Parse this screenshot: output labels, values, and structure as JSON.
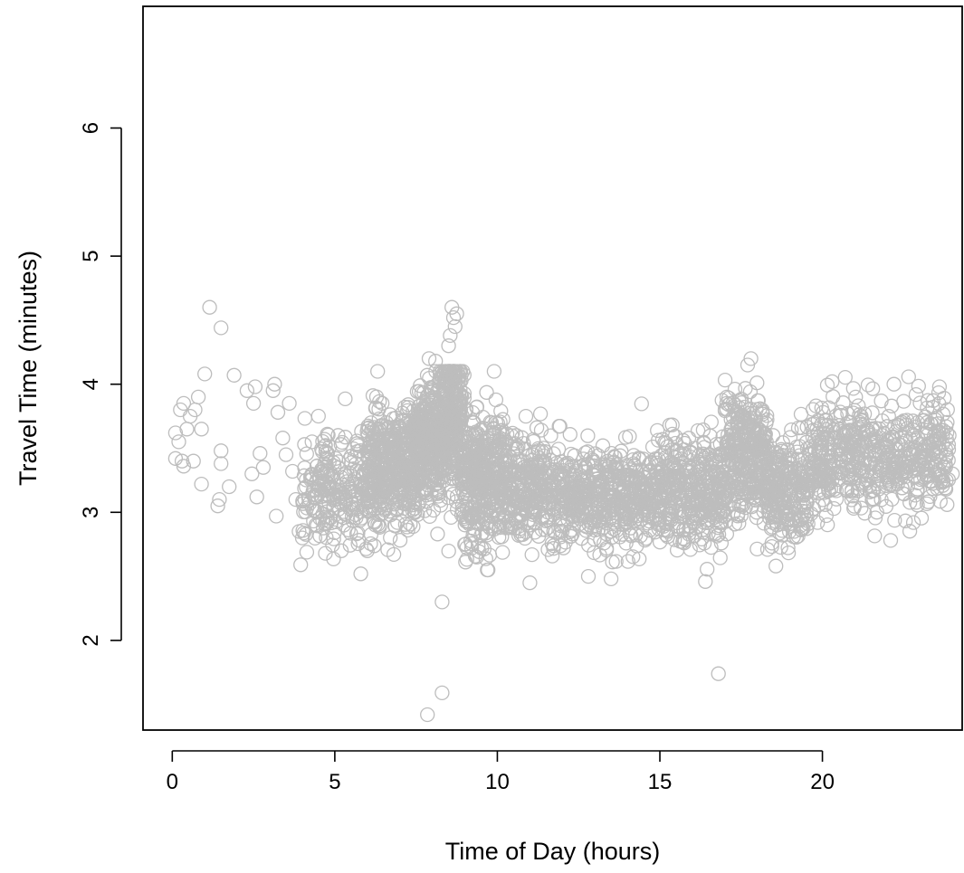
{
  "chart_data": {
    "type": "scatter",
    "title": "",
    "xlabel": "Time of Day (hours)",
    "ylabel": "Travel Time (minutes)",
    "xlim": [
      -0.9,
      24.3
    ],
    "ylim": [
      1.3,
      6.95
    ],
    "xticks": [
      0,
      5,
      10,
      15,
      20
    ],
    "xtick_labels": [
      "0",
      "5",
      "10",
      "15",
      "20"
    ],
    "yticks": [
      2,
      3,
      4,
      5,
      6
    ],
    "ytick_labels": [
      "2",
      "3",
      "4",
      "5",
      "6"
    ],
    "grid": false,
    "legend": "none",
    "marker": "open-circle",
    "point_color": "#bdbdbd",
    "series": [
      {
        "points_explicit": [
          [
            0.1,
            3.42
          ],
          [
            0.1,
            3.62
          ],
          [
            0.2,
            3.55
          ],
          [
            0.25,
            3.8
          ],
          [
            0.3,
            3.4
          ],
          [
            0.35,
            3.85
          ],
          [
            0.35,
            3.36
          ],
          [
            0.45,
            3.65
          ],
          [
            0.55,
            3.75
          ],
          [
            0.65,
            3.4
          ],
          [
            0.7,
            3.8
          ],
          [
            0.8,
            3.9
          ],
          [
            0.9,
            3.22
          ],
          [
            0.9,
            3.65
          ],
          [
            1.0,
            4.08
          ],
          [
            1.15,
            4.6
          ],
          [
            1.4,
            3.05
          ],
          [
            1.45,
            3.1
          ],
          [
            1.5,
            3.38
          ],
          [
            1.5,
            3.48
          ],
          [
            1.5,
            4.44
          ],
          [
            1.75,
            3.2
          ],
          [
            1.9,
            4.07
          ],
          [
            2.3,
            3.95
          ],
          [
            2.45,
            3.3
          ],
          [
            2.5,
            3.85
          ],
          [
            2.55,
            3.98
          ],
          [
            2.6,
            3.12
          ],
          [
            2.7,
            3.46
          ],
          [
            2.8,
            3.35
          ],
          [
            3.1,
            3.95
          ],
          [
            3.15,
            4.0
          ],
          [
            3.2,
            2.97
          ],
          [
            3.25,
            3.78
          ],
          [
            3.4,
            3.58
          ],
          [
            3.5,
            3.45
          ],
          [
            3.6,
            3.85
          ],
          [
            3.7,
            3.32
          ],
          [
            3.8,
            3.1
          ],
          [
            3.9,
            2.85
          ],
          [
            4.0,
            2.8
          ],
          [
            3.95,
            2.59
          ],
          [
            4.3,
            3.55
          ],
          [
            5.1,
            3.6
          ],
          [
            5.2,
            2.7
          ],
          [
            5.8,
            2.52
          ],
          [
            6.0,
            2.7
          ],
          [
            7.85,
            1.42
          ],
          [
            8.3,
            1.59
          ],
          [
            8.3,
            2.3
          ],
          [
            16.8,
            1.74
          ],
          [
            8.6,
            4.6
          ],
          [
            8.65,
            4.52
          ],
          [
            8.7,
            4.45
          ],
          [
            8.55,
            4.38
          ],
          [
            8.5,
            4.3
          ],
          [
            8.75,
            4.55
          ],
          [
            7.9,
            4.2
          ],
          [
            8.1,
            4.18
          ],
          [
            17.8,
            4.2
          ],
          [
            17.7,
            4.15
          ],
          [
            11.0,
            2.45
          ],
          [
            12.8,
            2.5
          ],
          [
            13.5,
            2.48
          ],
          [
            16.4,
            2.46
          ],
          [
            9.9,
            4.1
          ],
          [
            20.3,
            4.02
          ],
          [
            22.2,
            4.0
          ],
          [
            23.6,
            3.98
          ],
          [
            23.9,
            3.6
          ],
          [
            24.0,
            3.3
          ],
          [
            23.8,
            3.18
          ],
          [
            22.1,
            2.78
          ],
          [
            22.8,
            2.92
          ]
        ],
        "density_profile": [
          {
            "t_from": 4.0,
            "t_to": 6.0,
            "center": 3.18,
            "spread": 0.22,
            "points": 230
          },
          {
            "t_from": 6.0,
            "t_to": 7.5,
            "center": 3.35,
            "spread": 0.24,
            "points": 450
          },
          {
            "t_from": 7.5,
            "t_to": 8.3,
            "center": 3.55,
            "spread": 0.24,
            "points": 320
          },
          {
            "t_from": 8.3,
            "t_to": 8.9,
            "center": 3.75,
            "spread": 0.28,
            "points": 260
          },
          {
            "t_from": 8.9,
            "t_to": 9.4,
            "center": 3.35,
            "spread": 0.28,
            "points": 160
          },
          {
            "t_from": 9.4,
            "t_to": 10.2,
            "center": 3.25,
            "spread": 0.24,
            "points": 230
          },
          {
            "t_from": 10.2,
            "t_to": 11.5,
            "center": 3.2,
            "spread": 0.2,
            "points": 240
          },
          {
            "t_from": 11.5,
            "t_to": 15.0,
            "center": 3.12,
            "spread": 0.19,
            "points": 560
          },
          {
            "t_from": 15.0,
            "t_to": 17.0,
            "center": 3.18,
            "spread": 0.21,
            "points": 360
          },
          {
            "t_from": 17.0,
            "t_to": 18.3,
            "center": 3.45,
            "spread": 0.24,
            "points": 320
          },
          {
            "t_from": 18.3,
            "t_to": 19.6,
            "center": 3.18,
            "spread": 0.21,
            "points": 250
          },
          {
            "t_from": 19.6,
            "t_to": 21.5,
            "center": 3.45,
            "spread": 0.2,
            "points": 280
          },
          {
            "t_from": 21.5,
            "t_to": 23.9,
            "center": 3.42,
            "spread": 0.2,
            "points": 300
          }
        ]
      }
    ]
  }
}
